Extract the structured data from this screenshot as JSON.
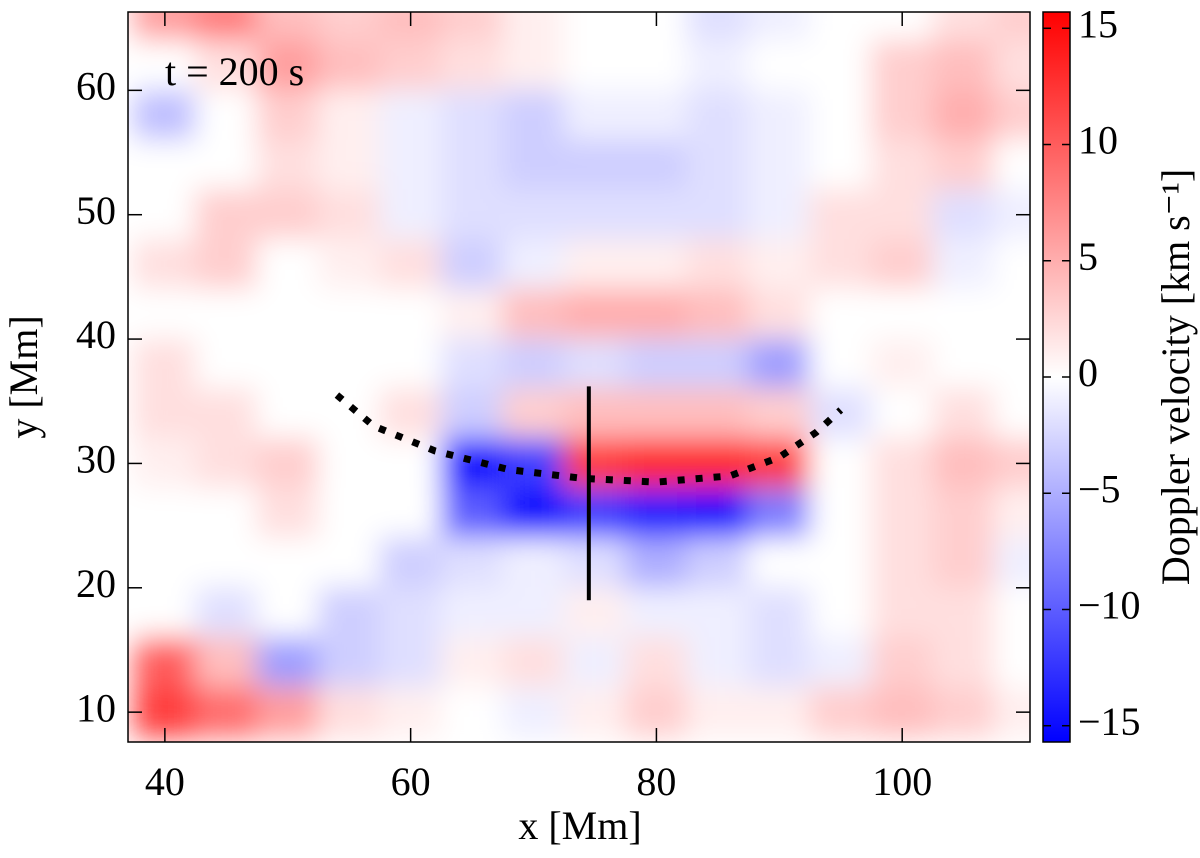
{
  "chart_data": {
    "type": "heatmap",
    "xlabel": "x [Mm]",
    "ylabel": "y [Mm]",
    "annotation": "t = 200 s",
    "xlim": [
      37,
      110.4
    ],
    "ylim": [
      7.6,
      66.3
    ],
    "xticks": [
      40,
      60,
      80,
      100
    ],
    "yticks": [
      10,
      20,
      30,
      40,
      50,
      60
    ],
    "x": [
      40,
      45,
      50,
      55,
      60,
      65,
      70,
      75,
      80,
      85,
      90,
      95,
      100,
      105,
      110
    ],
    "y": [
      66,
      62,
      58,
      54,
      50,
      46,
      42,
      38,
      34,
      30,
      26,
      22,
      18,
      14,
      10
    ],
    "z": [
      [
        6,
        8,
        4,
        3,
        4,
        3,
        1,
        0,
        0,
        -2,
        -1,
        0,
        0,
        2,
        3
      ],
      [
        0,
        2,
        6,
        4,
        3,
        2,
        1,
        0,
        0,
        -1,
        0,
        0,
        3,
        4,
        2
      ],
      [
        -4,
        0,
        3,
        1,
        -1,
        -2,
        -3,
        -1,
        -1,
        -2,
        -1,
        0,
        3,
        5,
        3
      ],
      [
        0,
        0,
        2,
        1,
        -1,
        -2,
        -3,
        -3,
        -3,
        -2,
        -1,
        0,
        2,
        3,
        0
      ],
      [
        0,
        3,
        3,
        2,
        -1,
        -2,
        -2,
        -2,
        -2,
        -2,
        -1,
        2,
        2,
        -2,
        -1
      ],
      [
        2,
        3,
        0,
        1,
        2,
        -3,
        -1,
        1,
        1,
        2,
        1,
        2,
        3,
        -1,
        0
      ],
      [
        0,
        0,
        0,
        0,
        0,
        1,
        4,
        5,
        5,
        4,
        2,
        0,
        0,
        0,
        0
      ],
      [
        2,
        0,
        0,
        0,
        0,
        -2,
        -3,
        -2,
        -3,
        -3,
        -6,
        0,
        1,
        0,
        0
      ],
      [
        2,
        2,
        0,
        0,
        2,
        -3,
        3,
        4,
        4,
        4,
        3,
        -2,
        0,
        2,
        0
      ],
      [
        1,
        2,
        3,
        0,
        0,
        -15,
        -12,
        12,
        13,
        13,
        12,
        0,
        2,
        4,
        3
      ],
      [
        0,
        0,
        2,
        0,
        0,
        -10,
        -15,
        -12,
        -14,
        -15,
        -8,
        0,
        2,
        3,
        1
      ],
      [
        0,
        0,
        0,
        0,
        -3,
        -2,
        -1,
        -2,
        -5,
        -3,
        0,
        0,
        2,
        3,
        -1
      ],
      [
        0,
        -2,
        0,
        -3,
        -2,
        -1,
        -1,
        1,
        -1,
        -1,
        -2,
        0,
        2,
        2,
        0
      ],
      [
        10,
        4,
        -6,
        -3,
        -2,
        1,
        2,
        -1,
        2,
        -1,
        -2,
        -1,
        3,
        2,
        0
      ],
      [
        12,
        9,
        6,
        2,
        1,
        0,
        -1,
        1,
        3,
        1,
        1,
        3,
        4,
        3,
        1
      ]
    ],
    "colorbar": {
      "label": "Doppler velocity [km s⁻¹]",
      "lim": [
        -15.7,
        15.7
      ],
      "ticks": [
        {
          "value": -15,
          "label": "−15"
        },
        {
          "value": -10,
          "label": "−10"
        },
        {
          "value": -5,
          "label": "−5"
        },
        0,
        5,
        10,
        15
      ],
      "colors": [
        "#0000ff",
        "#ffffff",
        "#ff0000"
      ]
    },
    "lines": [
      {
        "x": [
          74.5,
          74.5
        ],
        "y": [
          19,
          36.2
        ],
        "color": "#000000",
        "style": "solid"
      },
      {
        "x": [
          54,
          57,
          62,
          68,
          74,
          80,
          86,
          90,
          93,
          95
        ],
        "y": [
          35.5,
          33,
          31,
          29.5,
          28.8,
          28.5,
          29,
          30.5,
          32.5,
          34.3
        ],
        "color": "#000000",
        "style": "dotted"
      }
    ]
  }
}
